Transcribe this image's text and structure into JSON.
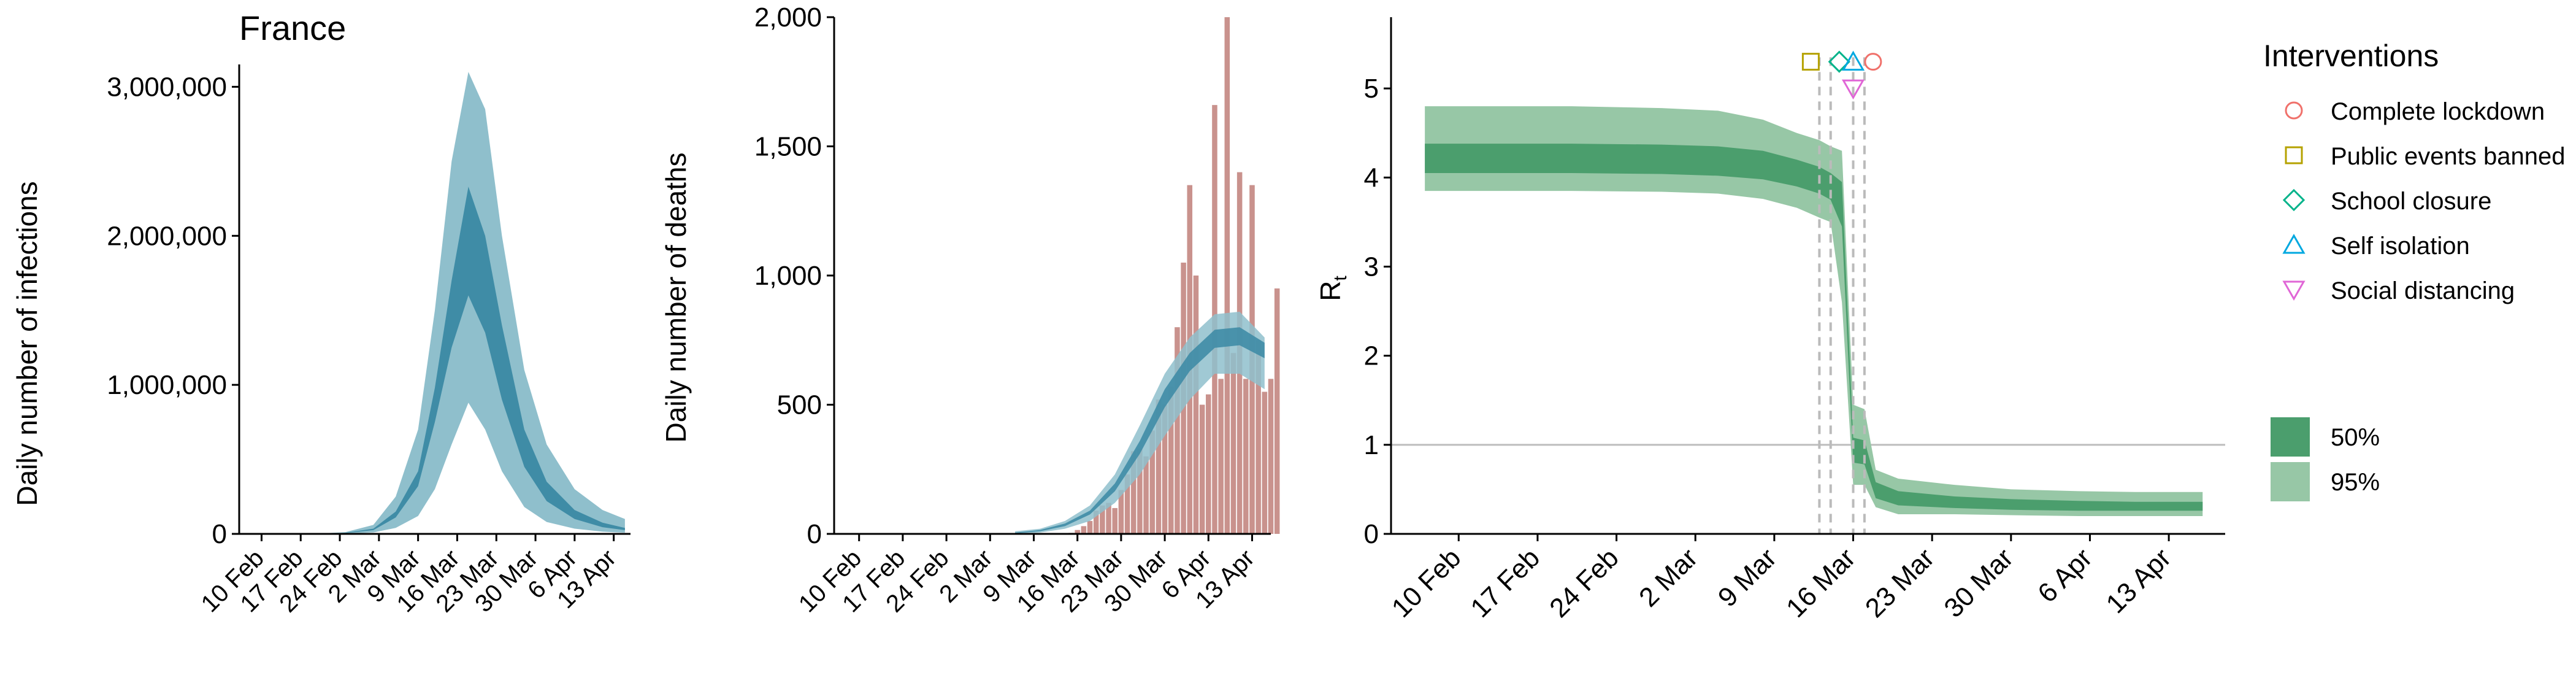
{
  "chart_data": [
    {
      "type": "area",
      "title": "France",
      "ylabel": "Daily number of infections",
      "xlabel": "",
      "x_tick_labels": [
        "10 Feb",
        "17 Feb",
        "24 Feb",
        "2 Mar",
        "9 Mar",
        "16 Mar",
        "23 Mar",
        "30 Mar",
        "6 Apr",
        "13 Apr"
      ],
      "y_ticks": [
        0,
        1000000,
        2000000,
        3000000
      ],
      "y_tick_labels": [
        "0",
        "1,000,000",
        "2,000,000",
        "3,000,000"
      ],
      "ylim": [
        0,
        3150000
      ],
      "x_range_days": [
        "2020-02-06",
        "2020-04-16"
      ],
      "series": [
        {
          "band": "95%",
          "x": [
            "2020-02-20",
            "2020-02-25",
            "2020-03-01",
            "2020-03-05",
            "2020-03-09",
            "2020-03-12",
            "2020-03-15",
            "2020-03-18",
            "2020-03-21",
            "2020-03-24",
            "2020-03-28",
            "2020-04-01",
            "2020-04-06",
            "2020-04-11",
            "2020-04-15"
          ],
          "low": [
            0,
            2000,
            10000,
            40000,
            120000,
            300000,
            600000,
            880000,
            700000,
            420000,
            180000,
            80000,
            35000,
            15000,
            8000
          ],
          "high": [
            2000,
            12000,
            60000,
            250000,
            700000,
            1500000,
            2500000,
            3100000,
            2850000,
            2000000,
            1100000,
            600000,
            300000,
            160000,
            100000
          ]
        },
        {
          "band": "50%",
          "x": [
            "2020-02-20",
            "2020-02-25",
            "2020-03-01",
            "2020-03-05",
            "2020-03-09",
            "2020-03-12",
            "2020-03-15",
            "2020-03-18",
            "2020-03-21",
            "2020-03-24",
            "2020-03-28",
            "2020-04-01",
            "2020-04-06",
            "2020-04-11",
            "2020-04-15"
          ],
          "low": [
            1000,
            5000,
            25000,
            110000,
            320000,
            750000,
            1250000,
            1600000,
            1350000,
            900000,
            450000,
            220000,
            100000,
            45000,
            25000
          ],
          "high": [
            1000,
            7000,
            35000,
            150000,
            420000,
            980000,
            1700000,
            2330000,
            2000000,
            1400000,
            700000,
            350000,
            160000,
            75000,
            40000
          ]
        }
      ],
      "colors": {
        "band95": "#8fbfcc",
        "band50": "#3f8ca6"
      }
    },
    {
      "type": "bar",
      "ylabel": "Daily number of deaths",
      "xlabel": "",
      "x_tick_labels": [
        "10 Feb",
        "17 Feb",
        "24 Feb",
        "2 Mar",
        "9 Mar",
        "16 Mar",
        "23 Mar",
        "30 Mar",
        "6 Apr",
        "13 Apr"
      ],
      "y_ticks": [
        0,
        500,
        1000,
        1500,
        2000
      ],
      "y_tick_labels": [
        "0",
        "500",
        "1,000",
        "1,500",
        "2,000"
      ],
      "ylim": [
        0,
        2000
      ],
      "bars": {
        "start_date": "2020-03-15",
        "values": [
          4,
          15,
          30,
          50,
          90,
          110,
          120,
          100,
          170,
          230,
          320,
          330,
          300,
          400,
          520,
          500,
          570,
          800,
          1050,
          1350,
          1000,
          500,
          540,
          1660,
          600,
          2000,
          700,
          1400,
          600,
          1350,
          750,
          550,
          600,
          950
        ],
        "color": "#c9928d"
      },
      "series": [
        {
          "band": "95%",
          "x": [
            "2020-03-06",
            "2020-03-10",
            "2020-03-14",
            "2020-03-18",
            "2020-03-22",
            "2020-03-26",
            "2020-03-30",
            "2020-04-03",
            "2020-04-07",
            "2020-04-11",
            "2020-04-15"
          ],
          "low": [
            0,
            5,
            20,
            50,
            120,
            230,
            380,
            520,
            620,
            620,
            560
          ],
          "high": [
            10,
            20,
            50,
            110,
            230,
            420,
            620,
            760,
            850,
            860,
            760
          ]
        },
        {
          "band": "50%",
          "x": [
            "2020-03-06",
            "2020-03-10",
            "2020-03-14",
            "2020-03-18",
            "2020-03-22",
            "2020-03-26",
            "2020-03-30",
            "2020-04-03",
            "2020-04-07",
            "2020-04-11",
            "2020-04-15"
          ],
          "low": [
            2,
            10,
            30,
            75,
            165,
            310,
            490,
            630,
            720,
            730,
            680
          ],
          "high": [
            5,
            15,
            40,
            90,
            195,
            360,
            560,
            700,
            790,
            800,
            740
          ]
        }
      ],
      "colors": {
        "band95": "#8fbfcc",
        "band50": "#3f8ca6"
      }
    },
    {
      "type": "area",
      "ylabel": "Rt",
      "xlabel": "",
      "x_tick_labels": [
        "10 Feb",
        "17 Feb",
        "24 Feb",
        "2 Mar",
        "9 Mar",
        "16 Mar",
        "23 Mar",
        "30 Mar",
        "6 Apr",
        "13 Apr"
      ],
      "y_ticks": [
        0,
        1,
        2,
        3,
        4,
        5
      ],
      "y_tick_labels": [
        "0",
        "1",
        "2",
        "3",
        "4",
        "5"
      ],
      "ylim": [
        0,
        5.8
      ],
      "x_range_days": [
        "2020-02-04",
        "2020-04-18"
      ],
      "reference_line": 1,
      "series": [
        {
          "band": "95%",
          "x": [
            "2020-02-07",
            "2020-02-20",
            "2020-02-28",
            "2020-03-04",
            "2020-03-08",
            "2020-03-11",
            "2020-03-13",
            "2020-03-14",
            "2020-03-15",
            "2020-03-16",
            "2020-03-17",
            "2020-03-18",
            "2020-03-20",
            "2020-03-25",
            "2020-03-30",
            "2020-04-05",
            "2020-04-10",
            "2020-04-16"
          ],
          "low": [
            3.85,
            3.85,
            3.84,
            3.82,
            3.76,
            3.66,
            3.55,
            3.5,
            2.6,
            0.55,
            0.55,
            0.3,
            0.22,
            0.22,
            0.21,
            0.2,
            0.2,
            0.2
          ],
          "high": [
            4.8,
            4.8,
            4.78,
            4.75,
            4.65,
            4.5,
            4.42,
            4.35,
            4.3,
            1.45,
            1.4,
            0.72,
            0.62,
            0.55,
            0.5,
            0.48,
            0.47,
            0.47
          ]
        },
        {
          "band": "50%",
          "x": [
            "2020-02-07",
            "2020-02-20",
            "2020-02-28",
            "2020-03-04",
            "2020-03-08",
            "2020-03-11",
            "2020-03-13",
            "2020-03-14",
            "2020-03-15",
            "2020-03-16",
            "2020-03-17",
            "2020-03-18",
            "2020-03-20",
            "2020-03-25",
            "2020-03-30",
            "2020-04-05",
            "2020-04-10",
            "2020-04-16"
          ],
          "low": [
            4.05,
            4.05,
            4.04,
            4.02,
            3.98,
            3.9,
            3.82,
            3.75,
            3.45,
            0.8,
            0.78,
            0.4,
            0.32,
            0.29,
            0.27,
            0.26,
            0.26,
            0.26
          ],
          "high": [
            4.38,
            4.38,
            4.37,
            4.35,
            4.3,
            4.2,
            4.12,
            4.05,
            3.95,
            1.08,
            1.05,
            0.58,
            0.48,
            0.42,
            0.39,
            0.37,
            0.36,
            0.36
          ]
        }
      ],
      "interventions": [
        {
          "name": "Public events banned",
          "date": "2020-03-13",
          "symbol": "square",
          "color": "#b5a200"
        },
        {
          "name": "School closure",
          "date": "2020-03-14",
          "symbol": "diamond",
          "color": "#00b38a"
        },
        {
          "name": "Self isolation",
          "date": "2020-03-16",
          "symbol": "triangle-up",
          "color": "#00a8e0"
        },
        {
          "name": "Social distancing",
          "date": "2020-03-16",
          "symbol": "triangle-down",
          "color": "#e066d6"
        },
        {
          "name": "Complete lockdown",
          "date": "2020-03-17",
          "symbol": "circle",
          "color": "#f0716b"
        }
      ],
      "colors": {
        "band95": "#97c7a6",
        "band50": "#4b9e6d"
      }
    }
  ],
  "legend": {
    "title": "Interventions",
    "items": [
      {
        "label": "Complete lockdown",
        "symbol": "circle",
        "color": "#f0716b"
      },
      {
        "label": "Public events banned",
        "symbol": "square",
        "color": "#b5a200"
      },
      {
        "label": "School closure",
        "symbol": "diamond",
        "color": "#00b38a"
      },
      {
        "label": "Self isolation",
        "symbol": "triangle-up",
        "color": "#00a8e0"
      },
      {
        "label": "Social distancing",
        "symbol": "triangle-down",
        "color": "#e066d6"
      }
    ],
    "bands": [
      {
        "label": "50%",
        "color": "#4b9e6d"
      },
      {
        "label": "95%",
        "color": "#97c7a6"
      }
    ]
  }
}
